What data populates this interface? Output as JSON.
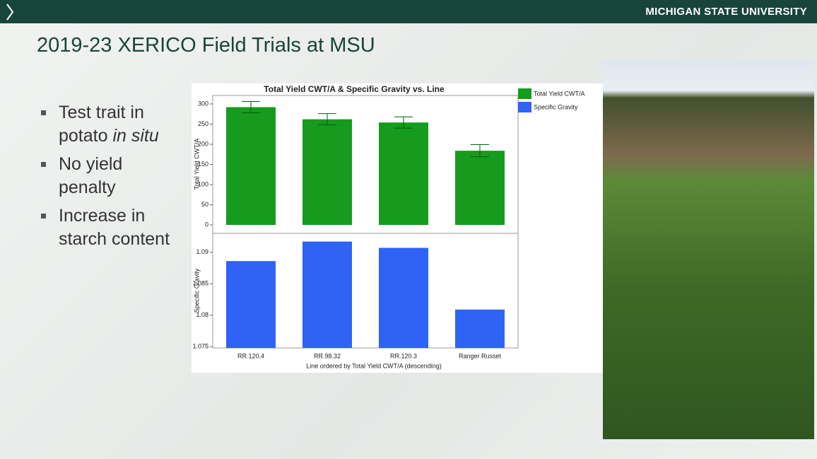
{
  "header": {
    "university": "MICHIGAN STATE UNIVERSITY"
  },
  "slide": {
    "title": "2019-23 XERICO Field Trials at MSU",
    "bullets": [
      {
        "text": "Test trait in potato",
        "emphasis": "in situ"
      },
      {
        "text": "No yield penalty"
      },
      {
        "text": "Increase in starch content"
      }
    ]
  },
  "chart_data": {
    "type": "bar",
    "title": "Total Yield CWT/A & Specific Gravity vs. Line",
    "categories": [
      "RR.120.4",
      "RR.98.32",
      "RR.120.3",
      "Ranger Russet"
    ],
    "xlabel": "Line ordered by Total Yield CWT/A (descending)",
    "ylabel": "Total Yield CWT/A",
    "ylim": [
      -21,
      321
    ],
    "yticks": [
      0,
      50,
      100,
      150,
      200,
      250,
      300
    ],
    "y2label": "Specific Gravity",
    "y2lim": [
      1.0748,
      1.093
    ],
    "y2ticks": [
      1.075,
      1.08,
      1.085,
      1.09
    ],
    "series": [
      {
        "name": "Total Yield CWT/A",
        "color": "#169b1e",
        "values": [
          292,
          262,
          254,
          184
        ],
        "errors": [
          14,
          14,
          14,
          15
        ]
      },
      {
        "name": "Specific Gravity",
        "color": "#2f63f5",
        "values": [
          1.0886,
          1.0917,
          1.0907,
          1.0809
        ],
        "axis": "y2"
      }
    ]
  }
}
